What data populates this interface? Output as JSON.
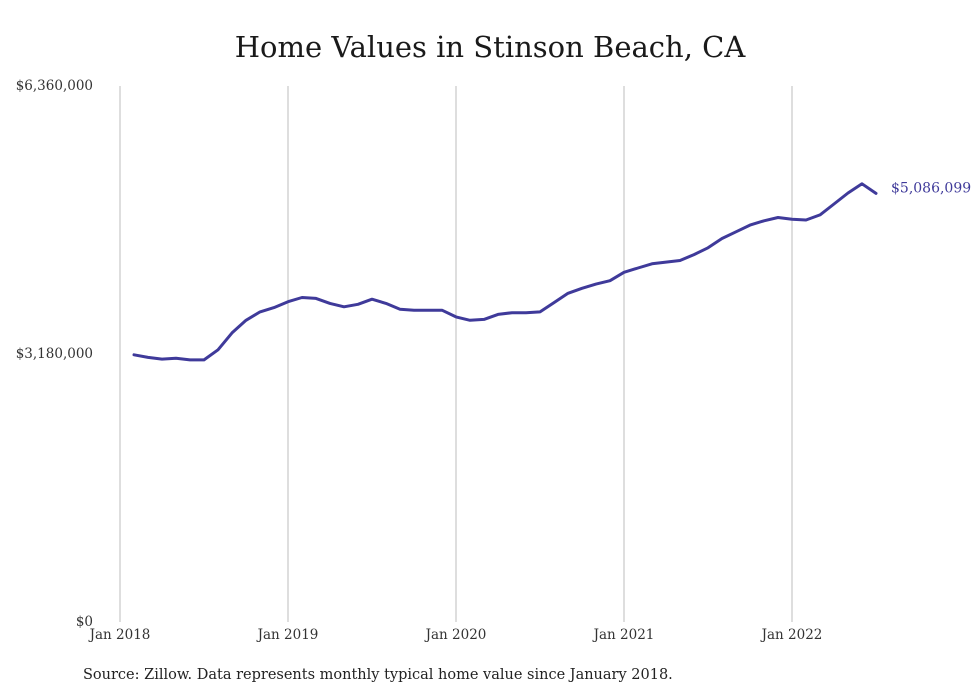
{
  "colors": {
    "line": "#3f3a9a",
    "grid": "#bdbdbd",
    "end_label": "#3f3a9a"
  },
  "source_note": "Source: Zillow. Data represents monthly typical home value since January 2018.",
  "chart_data": {
    "type": "line",
    "title": "Home Values in Stinson Beach, CA",
    "xlabel": "",
    "ylabel": "",
    "grid": "vertical",
    "ylim": [
      0,
      6360000
    ],
    "y_ticks": [
      {
        "value": 0,
        "label": "$0"
      },
      {
        "value": 3180000,
        "label": "$3,180,000"
      },
      {
        "value": 6360000,
        "label": "$6,360,000"
      }
    ],
    "x_ticks": [
      {
        "value": "2018-01",
        "label": "Jan 2018"
      },
      {
        "value": "2019-01",
        "label": "Jan 2019"
      },
      {
        "value": "2020-01",
        "label": "Jan 2020"
      },
      {
        "value": "2021-01",
        "label": "Jan 2021"
      },
      {
        "value": "2022-01",
        "label": "Jan 2022"
      }
    ],
    "end_label": "$5,086,099",
    "series": [
      {
        "x": [
          "2018-02",
          "2018-03",
          "2018-04",
          "2018-05",
          "2018-06",
          "2018-07",
          "2018-08",
          "2018-09",
          "2018-10",
          "2018-11",
          "2018-12",
          "2019-01",
          "2019-02",
          "2019-03",
          "2019-04",
          "2019-05",
          "2019-06",
          "2019-07",
          "2019-08",
          "2019-09",
          "2019-10",
          "2019-11",
          "2019-12",
          "2020-01",
          "2020-02",
          "2020-03",
          "2020-04",
          "2020-05",
          "2020-06",
          "2020-07",
          "2020-08",
          "2020-09",
          "2020-10",
          "2020-11",
          "2020-12",
          "2021-01",
          "2021-02",
          "2021-03",
          "2021-04",
          "2021-05",
          "2021-06",
          "2021-07",
          "2021-08",
          "2021-09",
          "2021-10",
          "2021-11",
          "2021-12",
          "2022-01",
          "2022-02",
          "2022-03",
          "2022-04",
          "2022-05",
          "2022-06",
          "2022-07"
        ],
        "values": [
          3170000,
          3140000,
          3120000,
          3130000,
          3110000,
          3110000,
          3230000,
          3430000,
          3580000,
          3680000,
          3730000,
          3800000,
          3850000,
          3840000,
          3780000,
          3740000,
          3770000,
          3830000,
          3780000,
          3710000,
          3700000,
          3700000,
          3700000,
          3620000,
          3580000,
          3590000,
          3650000,
          3670000,
          3670000,
          3680000,
          3790000,
          3900000,
          3960000,
          4010000,
          4050000,
          4150000,
          4200000,
          4250000,
          4270000,
          4290000,
          4360000,
          4440000,
          4550000,
          4630000,
          4710000,
          4760000,
          4800000,
          4780000,
          4770000,
          4830000,
          4960000,
          5090000,
          5200000,
          5086099
        ]
      }
    ]
  }
}
